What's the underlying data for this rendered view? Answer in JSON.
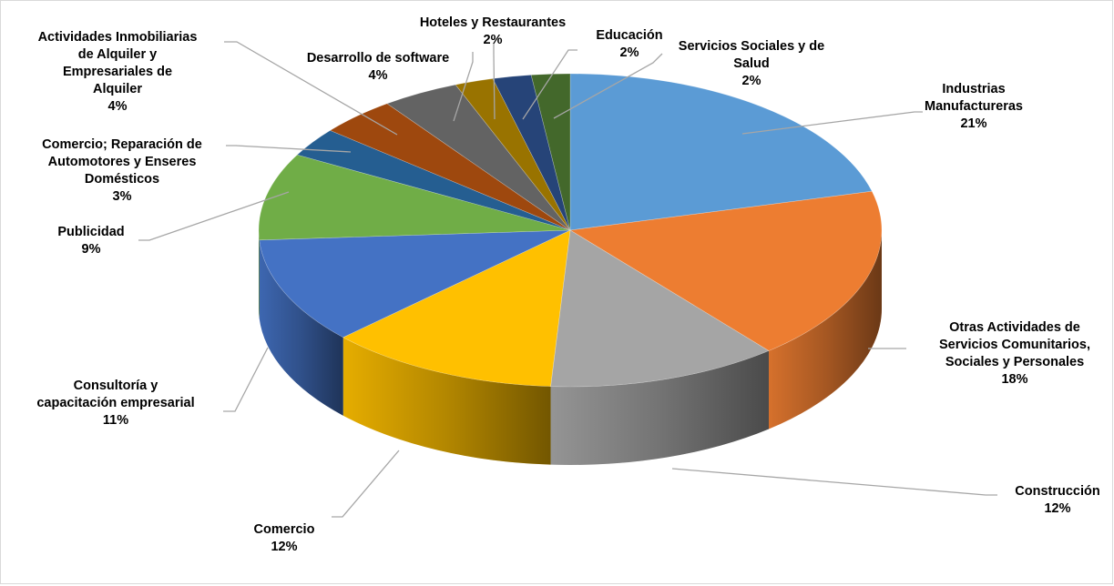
{
  "chart_data": {
    "type": "pie",
    "title": "",
    "unit": "%",
    "slices": [
      {
        "label_lines": [
          "Industrias",
          "Manufactureras"
        ],
        "value_label": "21%",
        "value": 21,
        "color": "#5b9bd5"
      },
      {
        "label_lines": [
          "Otras Actividades de",
          "Servicios Comunitarios,",
          "Sociales y Personales"
        ],
        "value_label": "18%",
        "value": 18,
        "color": "#ed7d31"
      },
      {
        "label_lines": [
          "Construcción"
        ],
        "value_label": "12%",
        "value": 12,
        "color": "#a5a5a5"
      },
      {
        "label_lines": [
          "Comercio"
        ],
        "value_label": "12%",
        "value": 12,
        "color": "#ffc000"
      },
      {
        "label_lines": [
          "Consultoría y",
          "capacitación empresarial"
        ],
        "value_label": "11%",
        "value": 11,
        "color": "#4472c4"
      },
      {
        "label_lines": [
          "Publicidad"
        ],
        "value_label": "9%",
        "value": 9,
        "color": "#70ad47"
      },
      {
        "label_lines": [
          "Comercio; Reparación de",
          "Automotores y Enseres",
          "Domésticos"
        ],
        "value_label": "3%",
        "value": 3,
        "color": "#255e91"
      },
      {
        "label_lines": [
          "Actividades Inmobiliarias",
          "de Alquiler y",
          "Empresariales de",
          "Alquiler"
        ],
        "value_label": "4%",
        "value": 4,
        "color": "#9e480e"
      },
      {
        "label_lines": [
          "Desarrollo de software"
        ],
        "value_label": "4%",
        "value": 4,
        "color": "#636363"
      },
      {
        "label_lines": [
          "Hoteles y Restaurantes"
        ],
        "value_label": "2%",
        "value": 2,
        "color": "#997300"
      },
      {
        "label_lines": [
          "Educación"
        ],
        "value_label": "2%",
        "value": 2,
        "color": "#264478"
      },
      {
        "label_lines": [
          "Servicios Sociales y de",
          "Salud"
        ],
        "value_label": "2%",
        "value": 2,
        "color": "#43682b"
      }
    ],
    "legend": "none",
    "style": "3d-pie"
  }
}
